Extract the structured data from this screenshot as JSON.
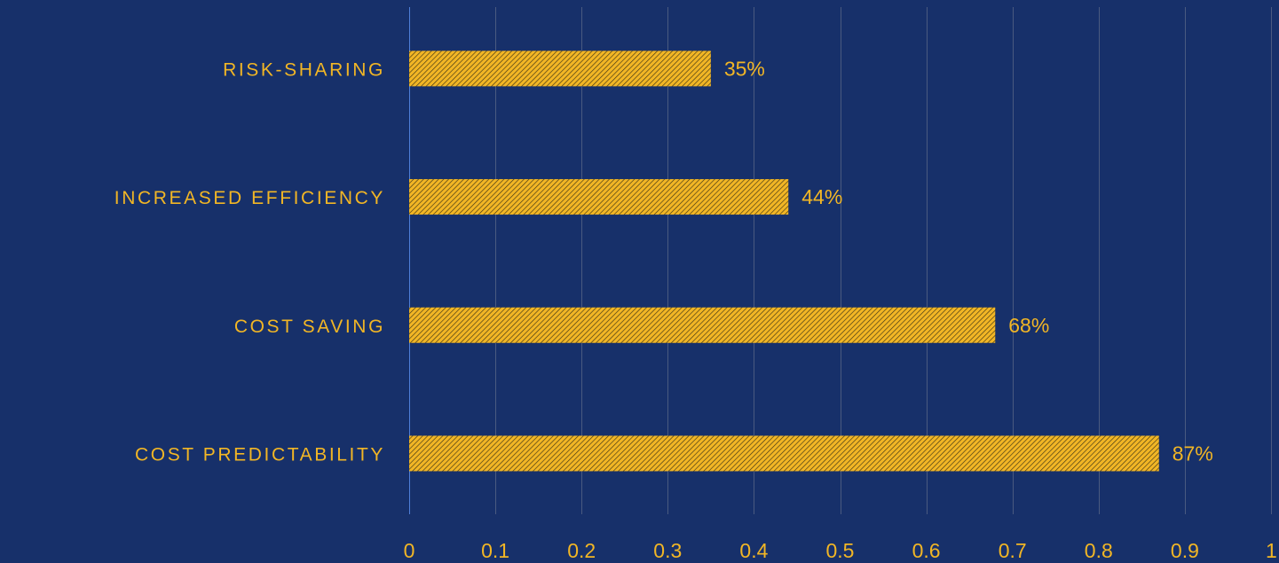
{
  "colors": {
    "background": "#17306a",
    "bar": "#f2b625",
    "bar_hatch": "#3d3415",
    "text": "#f2b625",
    "gridline": "#4a5a80",
    "axis_line": "#4f7fd8"
  },
  "chart_data": {
    "type": "bar",
    "orientation": "horizontal",
    "categories": [
      "RISK-SHARING",
      "INCREASED EFFICIENCY",
      "COST SAVING",
      "COST PREDICTABILITY"
    ],
    "values": [
      0.35,
      0.44,
      0.68,
      0.87
    ],
    "data_labels": [
      "35%",
      "44%",
      "68%",
      "87%"
    ],
    "title": "",
    "xlabel": "",
    "ylabel": "",
    "xlim": [
      0,
      1
    ],
    "x_ticks": [
      0,
      0.1,
      0.2,
      0.3,
      0.4,
      0.5,
      0.6,
      0.7,
      0.8,
      0.9,
      1
    ],
    "x_tick_labels": [
      "0",
      "0.1",
      "0.2",
      "0.3",
      "0.4",
      "0.5",
      "0.6",
      "0.7",
      "0.8",
      "0.9",
      "1"
    ],
    "grid": "vertical",
    "legend": "none",
    "bar_pattern": "diagonal-hatch"
  }
}
